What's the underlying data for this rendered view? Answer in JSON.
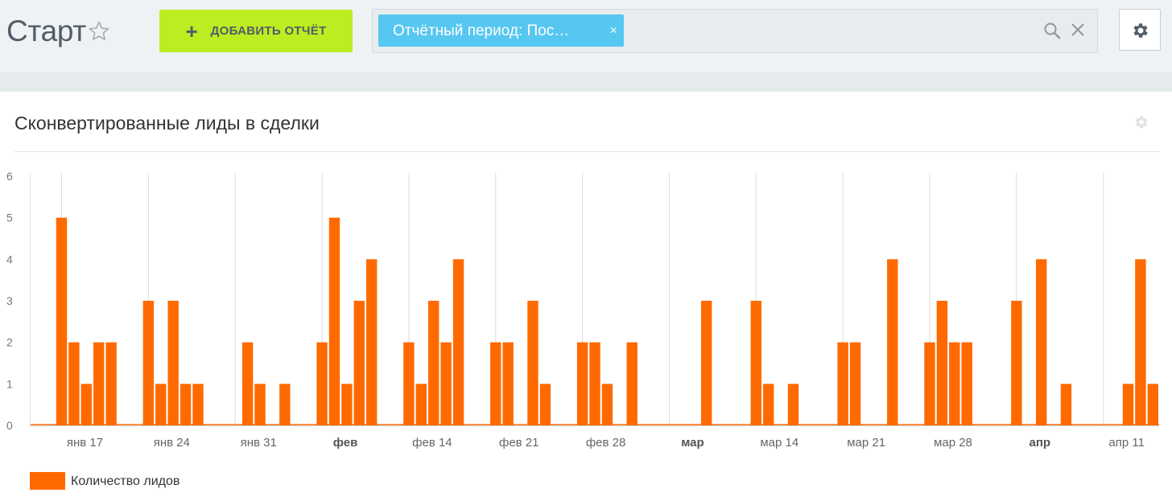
{
  "header": {
    "title": "Старт",
    "add_report_label": "ДОБАВИТЬ ОТЧЁТ",
    "filter_tag": "Отчётный период: Пос…",
    "filter_tag_close": "×"
  },
  "icons": {
    "favorite": "star-outline-icon",
    "add": "plus-icon",
    "search": "search-icon",
    "clear": "close-icon",
    "settings": "gear-icon",
    "widget_settings": "gear-icon"
  },
  "colors": {
    "accent_button": "#bbed21",
    "filter_tag": "#56c7f0",
    "bar": "#ff6a00"
  },
  "widget": {
    "title": "Сконвертированные лиды в сделки"
  },
  "chart_data": {
    "type": "bar",
    "title": "Сконвертированные лиды в сделки",
    "ylim": [
      0,
      6
    ],
    "yticks": [
      0,
      1,
      2,
      3,
      4,
      5,
      6
    ],
    "grid": "vertical-weekly",
    "legend_position": "bottom-left",
    "x_start": "2022-01-15",
    "x_end": "2022-04-14",
    "week_ticks": [
      {
        "label": "янв 17",
        "bold": false,
        "date": "2022-01-17"
      },
      {
        "label": "янв 24",
        "bold": false,
        "date": "2022-01-24"
      },
      {
        "label": "янв 31",
        "bold": false,
        "date": "2022-01-31"
      },
      {
        "label": "фев",
        "bold": true,
        "date": "2022-02-07"
      },
      {
        "label": "фев 14",
        "bold": false,
        "date": "2022-02-14"
      },
      {
        "label": "фев 21",
        "bold": false,
        "date": "2022-02-21"
      },
      {
        "label": "фев 28",
        "bold": false,
        "date": "2022-02-28"
      },
      {
        "label": "мар",
        "bold": true,
        "date": "2022-03-07"
      },
      {
        "label": "мар 14",
        "bold": false,
        "date": "2022-03-14"
      },
      {
        "label": "мар 21",
        "bold": false,
        "date": "2022-03-21"
      },
      {
        "label": "мар 28",
        "bold": false,
        "date": "2022-03-28"
      },
      {
        "label": "апр",
        "bold": true,
        "date": "2022-04-04"
      },
      {
        "label": "апр 11",
        "bold": false,
        "date": "2022-04-11"
      }
    ],
    "series": [
      {
        "name": "Количество лидов",
        "color": "#ff6a00",
        "values": [
          0,
          0,
          5,
          2,
          1,
          2,
          2,
          0,
          0,
          3,
          1,
          3,
          1,
          1,
          0,
          0,
          0,
          2,
          1,
          0,
          1,
          0,
          0,
          2,
          5,
          1,
          3,
          4,
          0,
          0,
          2,
          1,
          3,
          2,
          4,
          0,
          0,
          2,
          2,
          0,
          3,
          1,
          0,
          0,
          2,
          2,
          1,
          0,
          2,
          0,
          0,
          0,
          0,
          0,
          3,
          0,
          0,
          0,
          3,
          1,
          0,
          1,
          0,
          0,
          0,
          2,
          2,
          0,
          0,
          4,
          0,
          0,
          2,
          3,
          2,
          2,
          0,
          0,
          0,
          3,
          0,
          4,
          0,
          1,
          0,
          0,
          0,
          0,
          1,
          4,
          1
        ]
      }
    ]
  },
  "legend": {
    "series_label": "Количество лидов"
  }
}
